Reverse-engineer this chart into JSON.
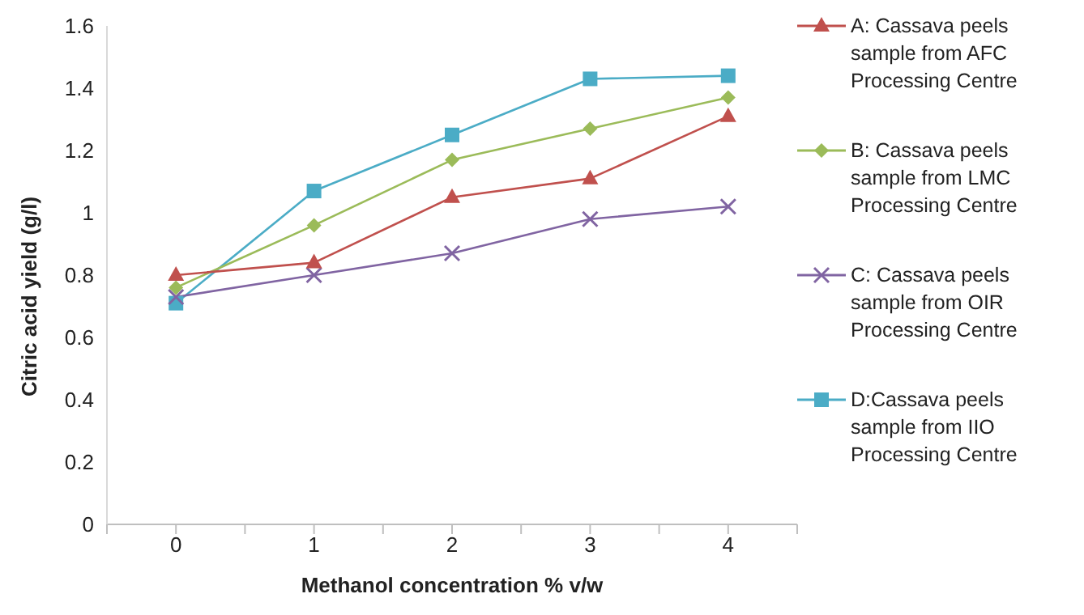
{
  "chart_data": {
    "type": "line",
    "xlabel": "Methanol concentration % v/w",
    "ylabel": "Citric acid yield (g/l)",
    "x": [
      0,
      1,
      2,
      3,
      4
    ],
    "series": [
      {
        "name": "A: Cassava peels sample from AFC Processing Centre",
        "color": "#c0504d",
        "marker": "triangle",
        "values": [
          0.8,
          0.84,
          1.05,
          1.11,
          1.31
        ]
      },
      {
        "name": "B: Cassava peels sample from LMC Processing Centre",
        "color": "#9bbb59",
        "marker": "diamond",
        "values": [
          0.76,
          0.96,
          1.17,
          1.27,
          1.37
        ]
      },
      {
        "name": "C: Cassava peels sample from OIR Processing Centre",
        "color": "#8064a2",
        "marker": "cross",
        "values": [
          0.73,
          0.8,
          0.87,
          0.98,
          1.02
        ]
      },
      {
        "name": "D:Cassava peels sample from IIO Processing Centre",
        "color": "#4bacc6",
        "marker": "square",
        "values": [
          0.71,
          1.07,
          1.25,
          1.43,
          1.44
        ]
      }
    ],
    "xlim": [
      -0.5,
      4.5
    ],
    "xticks": [
      {
        "value": -0.5,
        "label": null
      },
      0,
      {
        "value": 0.5,
        "label": null
      },
      1,
      {
        "value": 1.5,
        "label": null
      },
      2,
      {
        "value": 2.5,
        "label": null
      },
      3,
      {
        "value": 3.5,
        "label": null
      },
      4,
      {
        "value": 4.5,
        "label": null
      }
    ],
    "ylim": [
      0,
      1.6
    ],
    "yticks": [
      0,
      0.2,
      0.4,
      0.6,
      0.8,
      1,
      1.2,
      1.4,
      1.6
    ],
    "grid": false,
    "legend": "right",
    "line_style": "solid"
  }
}
